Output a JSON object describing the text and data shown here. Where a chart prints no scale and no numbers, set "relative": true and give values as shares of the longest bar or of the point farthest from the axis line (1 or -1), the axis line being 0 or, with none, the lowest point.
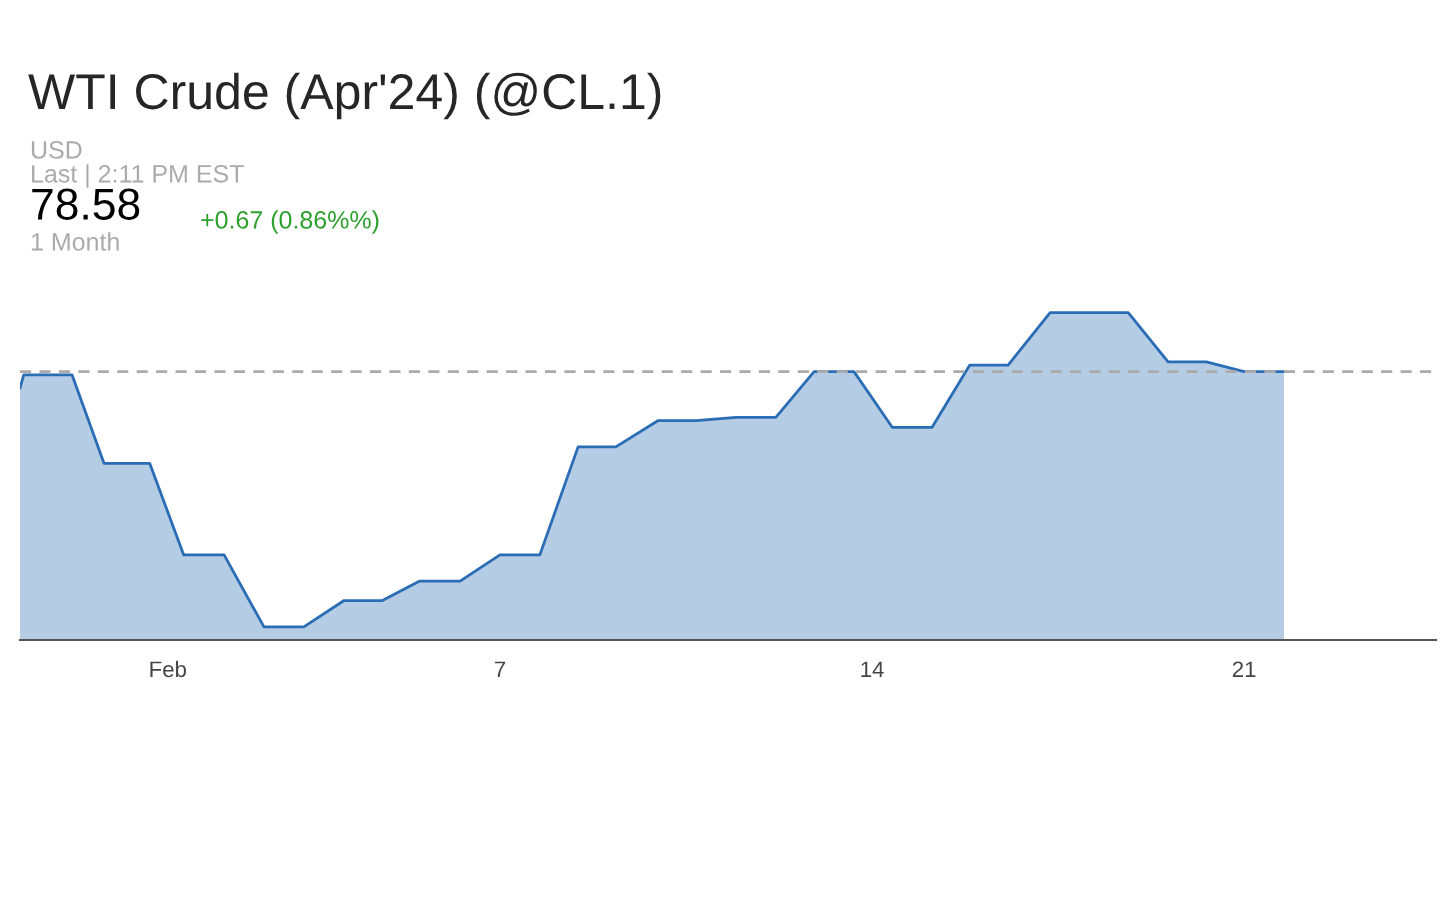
{
  "chart_data": {
    "type": "area",
    "title": "WTI Crude (Apr'24) (@CL.1)",
    "relative": true,
    "annotations": [
      "USD",
      "Last | 2:11 PM EST",
      "78.58",
      "+0.67 (0.86%%)",
      "1 Month"
    ],
    "xlim": [
      -2.03,
      24.61
    ],
    "xticks": [
      {
        "value": 0.75,
        "label": "Feb"
      },
      7,
      14,
      21
    ],
    "series": [
      {
        "color": "#2a6db5",
        "x": [
          -2.03,
          -1.96,
          -1.05,
          -0.45,
          0.41,
          1.05,
          1.81,
          2.56,
          3.31,
          4.06,
          4.78,
          5.49,
          6.25,
          7.0,
          7.75,
          8.47,
          9.18,
          9.97,
          10.69,
          11.44,
          12.19,
          12.91,
          13.66,
          14.38,
          15.13,
          15.84,
          16.56,
          17.35,
          18.82,
          19.57,
          20.29,
          21.0,
          21.75
        ],
        "values": [
          0.77,
          0.81,
          0.81,
          0.54,
          0.54,
          0.26,
          0.26,
          0.04,
          0.04,
          0.12,
          0.12,
          0.18,
          0.18,
          0.26,
          0.26,
          0.59,
          0.59,
          0.67,
          0.67,
          0.68,
          0.68,
          0.82,
          0.82,
          0.65,
          0.65,
          0.84,
          0.84,
          1.0,
          1.0,
          0.85,
          0.85,
          0.82,
          0.82
        ]
      }
    ],
    "ref_lines": [
      {
        "axis": "y",
        "value": 0.82,
        "color": "#aaaaaa",
        "line_style": "dashed"
      }
    ]
  }
}
